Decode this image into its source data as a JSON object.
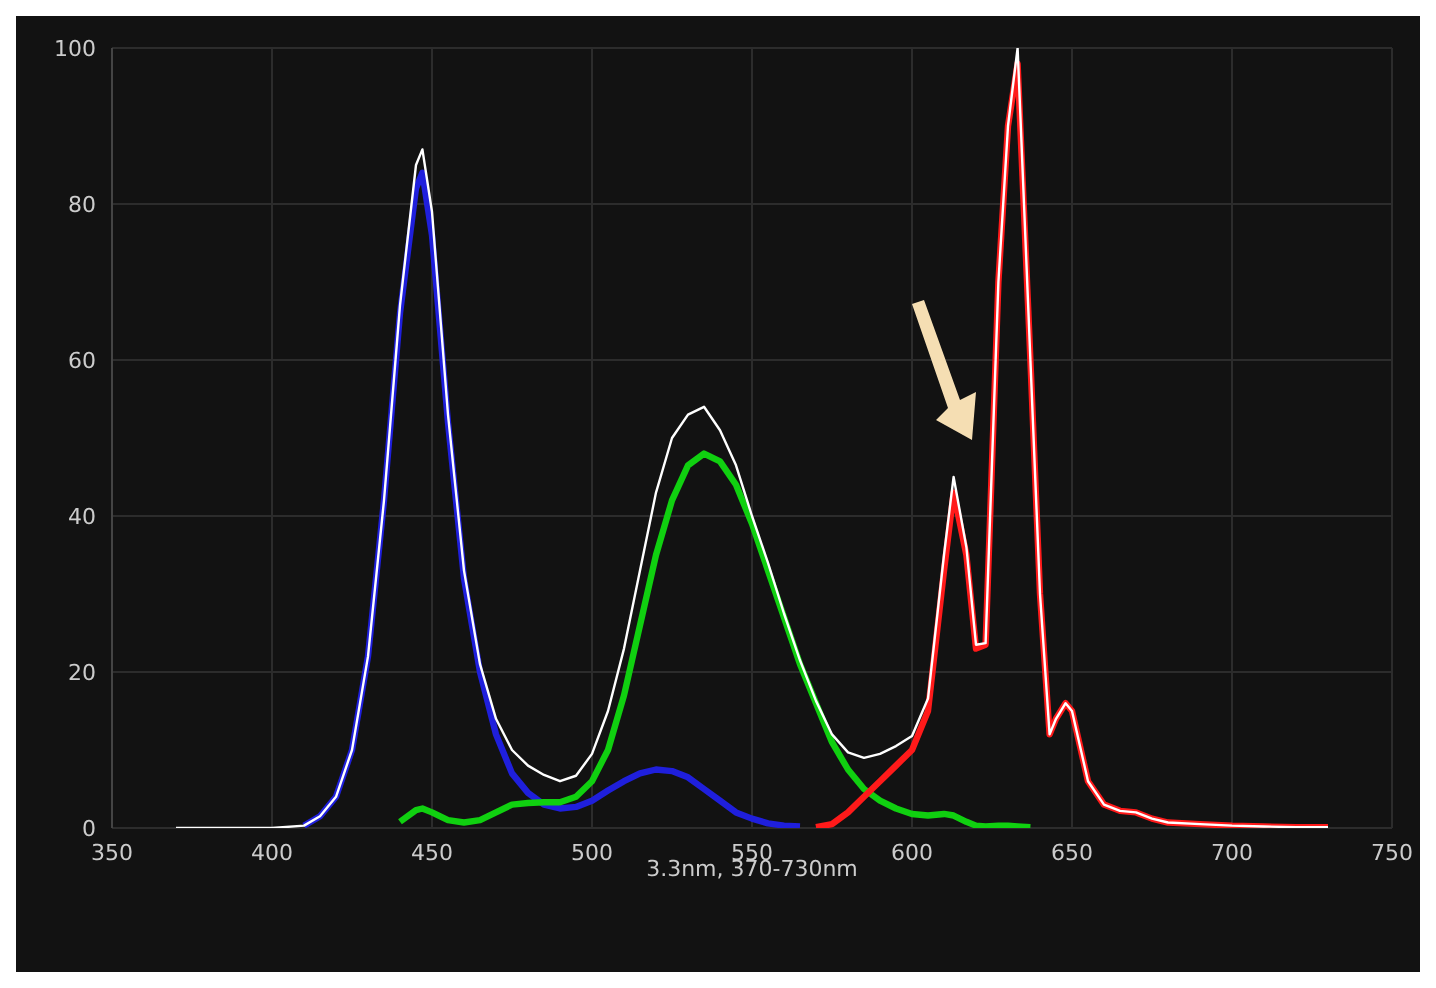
{
  "chart_data": {
    "type": "line",
    "xlabel": "3.3nm, 370-730nm",
    "x": [
      370,
      380,
      390,
      400,
      410,
      415,
      420,
      425,
      430,
      435,
      440,
      445,
      447,
      450,
      455,
      460,
      465,
      470,
      475,
      480,
      485,
      490,
      495,
      500,
      505,
      510,
      515,
      520,
      525,
      530,
      535,
      540,
      545,
      550,
      555,
      560,
      565,
      570,
      575,
      580,
      585,
      590,
      595,
      600,
      605,
      610,
      613,
      617,
      620,
      623,
      627,
      630,
      633,
      637,
      640,
      643,
      645,
      648,
      650,
      655,
      660,
      665,
      670,
      675,
      680,
      690,
      700,
      710,
      720,
      730
    ],
    "series": [
      {
        "color": "#1f1fdc",
        "values": [
          null,
          null,
          null,
          null,
          0.3,
          1.5,
          4,
          10,
          22,
          42,
          66,
          82,
          84,
          76,
          52,
          32,
          20,
          12,
          7,
          4.5,
          3,
          2.5,
          2.7,
          3.5,
          4.8,
          6,
          7,
          7.5,
          7.3,
          6.5,
          5,
          3.5,
          2,
          1.2,
          0.6,
          0.3,
          0.2,
          null,
          null,
          null,
          null,
          null,
          null,
          null,
          null,
          null,
          null,
          null,
          null,
          null,
          null,
          null,
          null,
          null,
          null,
          null,
          null,
          null,
          null,
          null,
          null,
          null,
          null,
          null,
          null,
          null,
          null,
          null,
          null,
          null
        ]
      },
      {
        "color": "#10d010",
        "values": [
          null,
          null,
          null,
          null,
          null,
          null,
          null,
          null,
          null,
          null,
          0.8,
          2.3,
          2.5,
          2,
          1,
          0.7,
          1,
          2,
          3,
          3.2,
          3.3,
          3.3,
          4,
          6,
          10,
          17,
          26,
          35,
          42,
          46.5,
          48,
          47,
          44,
          39,
          33,
          27,
          21,
          16,
          11,
          7.5,
          5,
          3.5,
          2.5,
          1.8,
          1.6,
          1.8,
          1.6,
          0.8,
          0.3,
          0.2,
          0.3,
          0.3,
          0.2,
          0.1,
          null,
          null,
          null,
          null,
          null,
          null,
          null,
          null,
          null,
          null,
          null,
          null,
          null,
          null,
          null,
          null
        ]
      },
      {
        "color": "#ff1a1a",
        "values": [
          null,
          null,
          null,
          null,
          null,
          null,
          null,
          null,
          null,
          null,
          null,
          null,
          null,
          null,
          null,
          null,
          null,
          null,
          null,
          null,
          null,
          null,
          null,
          null,
          null,
          null,
          null,
          null,
          null,
          null,
          null,
          null,
          null,
          null,
          null,
          null,
          null,
          0.1,
          0.5,
          2,
          4,
          6,
          8,
          10,
          15,
          33,
          43,
          35,
          23,
          23.5,
          70,
          90,
          98,
          60,
          30,
          12,
          14,
          16,
          15,
          6,
          3,
          2.2,
          2,
          1.2,
          0.7,
          0.5,
          0.3,
          0.2,
          0.1,
          0.1
        ]
      },
      {
        "color": "#ffffff",
        "values": [
          0,
          0,
          0,
          0,
          0.3,
          1.5,
          4,
          10,
          22,
          42,
          67,
          85,
          87,
          79,
          53,
          33,
          21,
          14,
          10,
          8,
          6.8,
          6,
          6.7,
          9.5,
          15,
          23,
          33,
          43,
          50,
          53,
          54,
          51,
          46.5,
          40,
          34,
          27.5,
          21.5,
          16.3,
          12,
          9.7,
          9,
          9.5,
          10.5,
          11.8,
          16.6,
          35,
          45,
          36,
          23.5,
          23.7,
          70,
          90,
          100,
          60,
          30,
          12,
          14,
          16,
          15,
          6,
          3,
          2.2,
          2,
          1.2,
          0.7,
          0.5,
          0.3,
          0.2,
          0.1,
          0.1
        ]
      }
    ],
    "xlim": [
      350,
      750
    ],
    "xticks": [
      350,
      400,
      450,
      500,
      550,
      600,
      650,
      700,
      750
    ],
    "ylim": [
      0,
      100
    ],
    "yticks": [
      0,
      20,
      40,
      60,
      80,
      100
    ],
    "grid": true,
    "legend": false,
    "marker": "none",
    "line_style": "solid"
  }
}
